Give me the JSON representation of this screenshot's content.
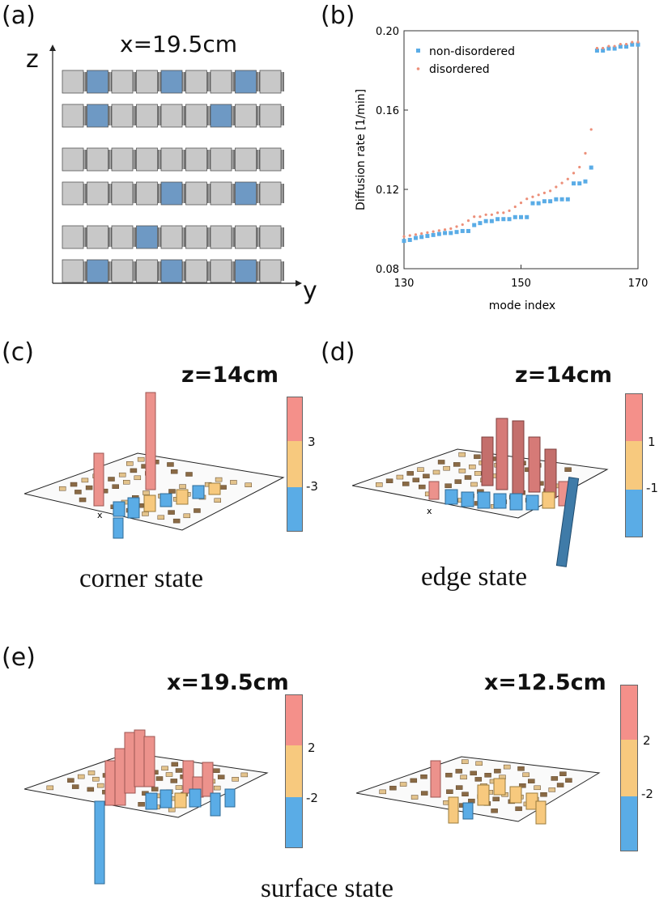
{
  "panels": {
    "a": {
      "label": "(a)",
      "title": "x=19.5cm",
      "axis_z": "z",
      "axis_y": "y"
    },
    "b": {
      "label": "(b)"
    },
    "c": {
      "label": "(c)",
      "title": "z=14cm",
      "caption": "corner state",
      "axis_mark": "x",
      "colorbar_ticks": [
        "3",
        "-3"
      ]
    },
    "d": {
      "label": "(d)",
      "title": "z=14cm",
      "caption": "edge state",
      "axis_mark": "x",
      "colorbar_ticks": [
        "1",
        "-1"
      ]
    },
    "e": {
      "label": "(e)",
      "title_left": "x=19.5cm",
      "title_right": "x=12.5cm",
      "caption": "surface state",
      "colorbar_left_ticks": [
        "2",
        "-2"
      ],
      "colorbar_right_ticks": [
        "2",
        "-2"
      ]
    }
  },
  "colors": {
    "pos": "#f4908a",
    "mid": "#f7c97e",
    "neg": "#5aace6",
    "block_grey": "#c8c8c8",
    "block_blue": "#6e99c4"
  },
  "chart_data": {
    "type": "scatter",
    "title": "",
    "xlabel": "mode index",
    "ylabel": "Diffusion rate [1/min]",
    "xlim": [
      130,
      170
    ],
    "ylim": [
      0.08,
      0.2
    ],
    "xticks": [
      "130",
      "150",
      "170"
    ],
    "yticks": [
      "0.08",
      "0.12",
      "0.16",
      "0.20"
    ],
    "legend_position": "top-left",
    "series": [
      {
        "name": "non-disordered",
        "color": "#5aace6",
        "marker": "square",
        "x": [
          130,
          131,
          132,
          133,
          134,
          135,
          136,
          137,
          138,
          139,
          140,
          141,
          142,
          143,
          144,
          145,
          146,
          147,
          148,
          149,
          150,
          151,
          152,
          153,
          154,
          155,
          156,
          157,
          158,
          159,
          160,
          161,
          162,
          163,
          164,
          165,
          166,
          167,
          168,
          169,
          170
        ],
        "y": [
          0.094,
          0.0945,
          0.0955,
          0.096,
          0.0965,
          0.097,
          0.0975,
          0.098,
          0.098,
          0.0985,
          0.099,
          0.099,
          0.102,
          0.103,
          0.104,
          0.104,
          0.105,
          0.105,
          0.105,
          0.106,
          0.106,
          0.106,
          0.113,
          0.113,
          0.114,
          0.114,
          0.115,
          0.115,
          0.115,
          0.123,
          0.123,
          0.124,
          0.131,
          0.19,
          0.19,
          0.191,
          0.191,
          0.192,
          0.192,
          0.193,
          0.193
        ]
      },
      {
        "name": "disordered",
        "color": "#ec8f79",
        "marker": "dot",
        "x": [
          130,
          131,
          132,
          133,
          134,
          135,
          136,
          137,
          138,
          139,
          140,
          141,
          142,
          143,
          144,
          145,
          146,
          147,
          148,
          149,
          150,
          151,
          152,
          153,
          154,
          155,
          156,
          157,
          158,
          159,
          160,
          161,
          162,
          163,
          164,
          165,
          166,
          167,
          168,
          169,
          170
        ],
        "y": [
          0.095,
          0.0955,
          0.096,
          0.0965,
          0.097,
          0.0975,
          0.098,
          0.0985,
          0.099,
          0.1,
          0.101,
          0.103,
          0.105,
          0.105,
          0.106,
          0.106,
          0.107,
          0.107,
          0.108,
          0.11,
          0.112,
          0.114,
          0.115,
          0.116,
          0.117,
          0.118,
          0.12,
          0.122,
          0.124,
          0.127,
          0.13,
          0.137,
          0.149,
          0.19,
          0.19,
          0.191,
          0.191,
          0.192,
          0.192,
          0.193,
          0.193
        ]
      }
    ]
  }
}
